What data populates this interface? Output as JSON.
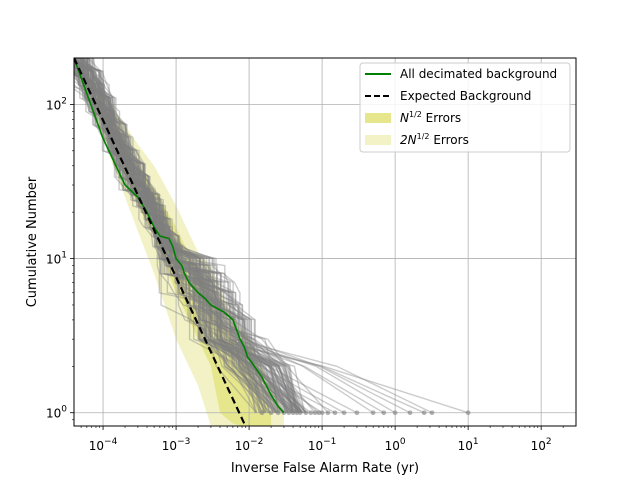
{
  "chart_data": {
    "type": "line",
    "xlabel": "Inverse False Alarm Rate (yr)",
    "ylabel": "Cumulative Number",
    "xscale": "log",
    "yscale": "log",
    "xlim": [
      4e-05,
      300
    ],
    "ylim": [
      0.82,
      200
    ],
    "grid": true,
    "legend_position": "top-right",
    "x_ticks": [
      {
        "value": 0.0001,
        "base": "10",
        "exp": "−4"
      },
      {
        "value": 0.001,
        "base": "10",
        "exp": "−3"
      },
      {
        "value": 0.01,
        "base": "10",
        "exp": "−2"
      },
      {
        "value": 0.1,
        "base": "10",
        "exp": "−1"
      },
      {
        "value": 1,
        "base": "10",
        "exp": "0"
      },
      {
        "value": 10,
        "base": "10",
        "exp": "1"
      },
      {
        "value": 100,
        "base": "10",
        "exp": "2"
      }
    ],
    "y_ticks": [
      {
        "value": 1,
        "base": "10",
        "exp": "0"
      },
      {
        "value": 10,
        "base": "10",
        "exp": "1"
      },
      {
        "value": 100,
        "base": "10",
        "exp": "2"
      }
    ],
    "legend": [
      {
        "kind": "line",
        "color": "#008000",
        "dash": false,
        "label": "All decimated background",
        "sup": ""
      },
      {
        "kind": "line",
        "color": "#000000",
        "dash": true,
        "label": "Expected Background",
        "sup": ""
      },
      {
        "kind": "patch",
        "color": "#e6e68c",
        "prefix": "N",
        "sup": "1/2",
        "label": "Errors"
      },
      {
        "kind": "patch",
        "color": "#f2f2c6",
        "prefix": "2N",
        "sup": "1/2",
        "label": "Errors"
      }
    ],
    "series": [
      {
        "name": "All decimated background",
        "color": "#008000",
        "x": [
          4e-05,
          0.0001,
          0.0002,
          0.0003,
          0.0004,
          0.0005,
          0.0006,
          0.0008,
          0.0009,
          0.001,
          0.0012,
          0.0013,
          0.0015,
          0.002,
          0.0025,
          0.003,
          0.0045,
          0.006,
          0.0075,
          0.0085,
          0.009,
          0.0095,
          0.011,
          0.015,
          0.02,
          0.025,
          0.03
        ],
        "y": [
          200,
          60,
          30,
          25,
          20,
          16,
          14,
          13.5,
          12,
          10,
          9,
          8,
          7,
          6,
          5.5,
          5,
          4.5,
          4,
          3,
          2.7,
          2.5,
          2.3,
          2.1,
          1.7,
          1.3,
          1.1,
          1
        ]
      },
      {
        "name": "Expected Background",
        "color": "#000000",
        "x": [
          4e-05,
          0.0086
        ],
        "y": [
          200,
          0.85
        ]
      }
    ],
    "error_bands": [
      {
        "name": "2N^1/2 Errors",
        "color": "#f2f2c6",
        "x": [
          4e-05,
          0.0001,
          0.0003,
          0.0005,
          0.001,
          0.002,
          0.003,
          0.005,
          0.007,
          0.01,
          0.015,
          0.02,
          0.03
        ],
        "upper": [
          205,
          120,
          55,
          40,
          22,
          11,
          9,
          5,
          3.8,
          3,
          2,
          1.5,
          1
        ],
        "lower": [
          180,
          60,
          15,
          8,
          3,
          1.5,
          0.82,
          0.82,
          0.82,
          0.82,
          0.82,
          0.82,
          0.82
        ]
      },
      {
        "name": "N^1/2 Errors",
        "color": "#e6e68c",
        "x": [
          4e-05,
          0.0001,
          0.0003,
          0.0005,
          0.001,
          0.002,
          0.003,
          0.004,
          0.006,
          0.008,
          0.01,
          0.015,
          0.02
        ],
        "upper": [
          200,
          100,
          42,
          28,
          16,
          8,
          6,
          4,
          3,
          2.5,
          2,
          1.3,
          1
        ],
        "lower": [
          190,
          78,
          22,
          14,
          6,
          3,
          2,
          1,
          0.85,
          0.82,
          0.82,
          0.82,
          0.82
        ]
      }
    ],
    "background_trials_count": 120,
    "background_trials_color": "#808080",
    "background_endpoints": [
      0.015,
      0.02,
      0.025,
      0.03,
      0.035,
      0.04,
      0.045,
      0.05,
      0.06,
      0.07,
      0.08,
      0.09,
      0.1,
      0.12,
      0.15,
      0.2,
      0.3,
      0.5,
      0.7,
      1,
      1.6,
      2.5,
      3.2,
      10
    ]
  }
}
